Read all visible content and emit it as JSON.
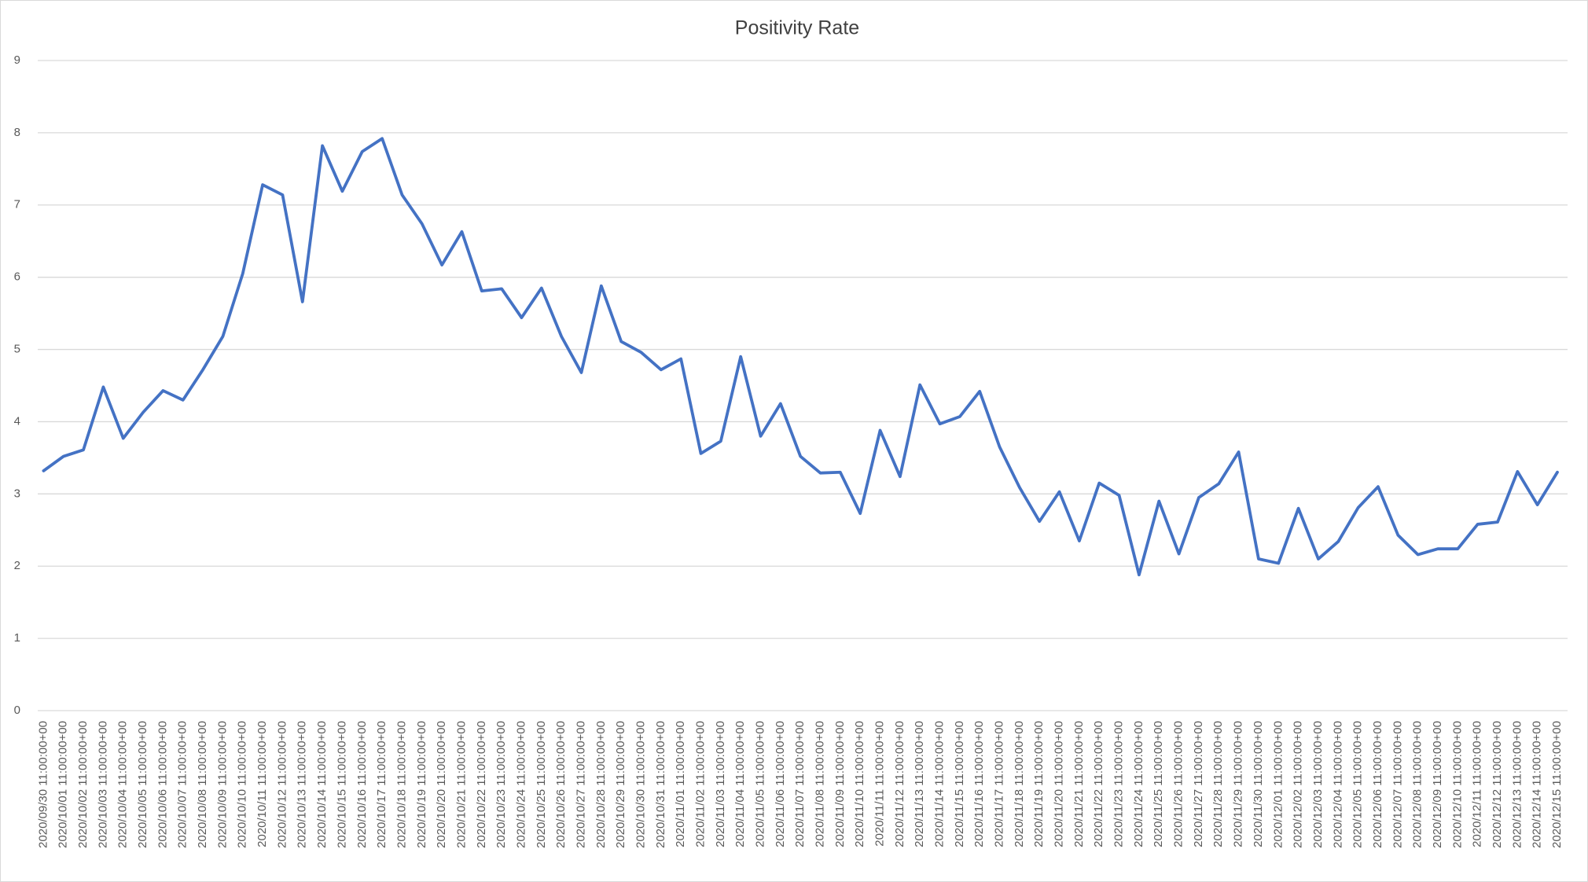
{
  "chart_data": {
    "type": "line",
    "title": "Positivity Rate",
    "categories": [
      "2020/09/30 11:00:00+00",
      "2020/10/01 11:00:00+00",
      "2020/10/02 11:00:00+00",
      "2020/10/03 11:00:00+00",
      "2020/10/04 11:00:00+00",
      "2020/10/05 11:00:00+00",
      "2020/10/06 11:00:00+00",
      "2020/10/07 11:00:00+00",
      "2020/10/08 11:00:00+00",
      "2020/10/09 11:00:00+00",
      "2020/10/10 11:00:00+00",
      "2020/10/11 11:00:00+00",
      "2020/10/12 11:00:00+00",
      "2020/10/13 11:00:00+00",
      "2020/10/14 11:00:00+00",
      "2020/10/15 11:00:00+00",
      "2020/10/16 11:00:00+00",
      "2020/10/17 11:00:00+00",
      "2020/10/18 11:00:00+00",
      "2020/10/19 11:00:00+00",
      "2020/10/20 11:00:00+00",
      "2020/10/21 11:00:00+00",
      "2020/10/22 11:00:00+00",
      "2020/10/23 11:00:00+00",
      "2020/10/24 11:00:00+00",
      "2020/10/25 11:00:00+00",
      "2020/10/26 11:00:00+00",
      "2020/10/27 11:00:00+00",
      "2020/10/28 11:00:00+00",
      "2020/10/29 11:00:00+00",
      "2020/10/30 11:00:00+00",
      "2020/10/31 11:00:00+00",
      "2020/11/01 11:00:00+00",
      "2020/11/02 11:00:00+00",
      "2020/11/03 11:00:00+00",
      "2020/11/04 11:00:00+00",
      "2020/11/05 11:00:00+00",
      "2020/11/06 11:00:00+00",
      "2020/11/07 11:00:00+00",
      "2020/11/08 11:00:00+00",
      "2020/11/09 11:00:00+00",
      "2020/11/10 11:00:00+00",
      "2020/11/11 11:00:00+00",
      "2020/11/12 11:00:00+00",
      "2020/11/13 11:00:00+00",
      "2020/11/14 11:00:00+00",
      "2020/11/15 11:00:00+00",
      "2020/11/16 11:00:00+00",
      "2020/11/17 11:00:00+00",
      "2020/11/18 11:00:00+00",
      "2020/11/19 11:00:00+00",
      "2020/11/20 11:00:00+00",
      "2020/11/21 11:00:00+00",
      "2020/11/22 11:00:00+00",
      "2020/11/23 11:00:00+00",
      "2020/11/24 11:00:00+00",
      "2020/11/25 11:00:00+00",
      "2020/11/26 11:00:00+00",
      "2020/11/27 11:00:00+00",
      "2020/11/28 11:00:00+00",
      "2020/11/29 11:00:00+00",
      "2020/11/30 11:00:00+00",
      "2020/12/01 11:00:00+00",
      "2020/12/02 11:00:00+00",
      "2020/12/03 11:00:00+00",
      "2020/12/04 11:00:00+00",
      "2020/12/05 11:00:00+00",
      "2020/12/06 11:00:00+00",
      "2020/12/07 11:00:00+00",
      "2020/12/08 11:00:00+00",
      "2020/12/09 11:00:00+00",
      "2020/12/10 11:00:00+00",
      "2020/12/11 11:00:00+00",
      "2020/12/12 11:00:00+00",
      "2020/12/13 11:00:00+00",
      "2020/12/14 11:00:00+00",
      "2020/12/15 11:00:00+00"
    ],
    "values": [
      3.32,
      3.52,
      3.61,
      4.48,
      3.77,
      4.13,
      4.43,
      4.3,
      4.72,
      5.18,
      6.05,
      7.28,
      7.14,
      5.66,
      7.82,
      7.19,
      7.74,
      7.92,
      7.14,
      6.74,
      6.17,
      6.63,
      5.81,
      5.84,
      5.44,
      5.85,
      5.18,
      4.68,
      5.88,
      5.11,
      4.96,
      4.72,
      4.87,
      3.56,
      3.73,
      4.9,
      3.8,
      4.25,
      3.52,
      3.29,
      3.3,
      2.73,
      3.88,
      3.24,
      4.51,
      3.97,
      4.07,
      4.42,
      3.65,
      3.09,
      2.62,
      3.03,
      2.35,
      3.15,
      2.98,
      1.88,
      2.9,
      2.17,
      2.95,
      3.14,
      3.58,
      2.1,
      2.04,
      2.8,
      2.1,
      2.34,
      2.81,
      3.1,
      2.43,
      2.16,
      2.24,
      2.24,
      2.58,
      2.61,
      3.31,
      2.85,
      3.3
    ],
    "color": "#4472c4",
    "ylim": [
      0,
      9
    ],
    "yticks": [
      0,
      1,
      2,
      3,
      4,
      5,
      6,
      7,
      8,
      9
    ],
    "grid": true
  }
}
